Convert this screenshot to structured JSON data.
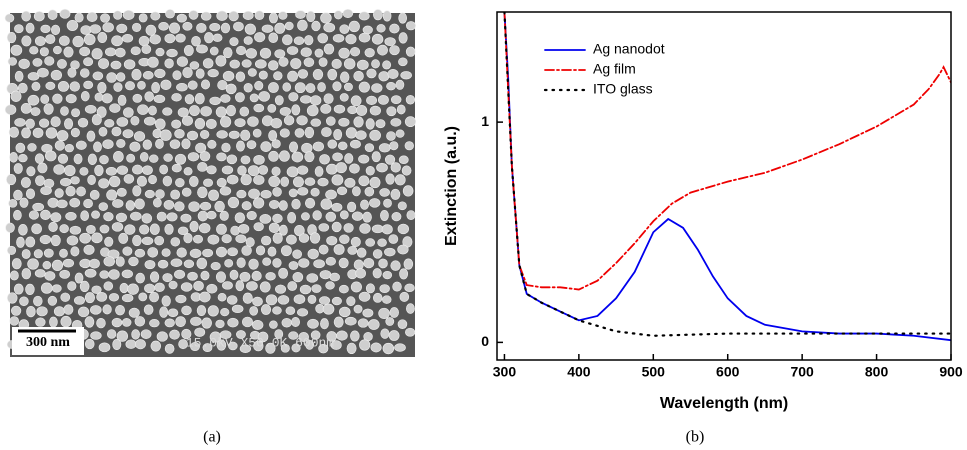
{
  "panel_a": {
    "scale_bar": "300 nm",
    "info": "15.0kV X50.0K 600nm",
    "caption": "(a)"
  },
  "caption_b": "(b)",
  "chart_data": {
    "type": "line",
    "xlabel": "Wavelength (nm)",
    "ylabel": "Extinction (a.u.)",
    "xlim": [
      290,
      900
    ],
    "ylim": [
      -0.08,
      1.5
    ],
    "xticks": [
      300,
      400,
      500,
      600,
      700,
      800,
      900
    ],
    "yticks": [
      0,
      1
    ],
    "legend": "upper left",
    "series": [
      {
        "name": "Ag nanodot",
        "color": "#0000ee",
        "style": "solid",
        "x": [
          300,
          305,
          310,
          320,
          330,
          350,
          375,
          400,
          425,
          450,
          475,
          500,
          520,
          540,
          560,
          580,
          600,
          625,
          650,
          700,
          750,
          800,
          850,
          900
        ],
        "values": [
          1.5,
          1.2,
          0.8,
          0.35,
          0.22,
          0.18,
          0.14,
          0.1,
          0.12,
          0.2,
          0.32,
          0.5,
          0.56,
          0.52,
          0.42,
          0.3,
          0.2,
          0.12,
          0.08,
          0.05,
          0.04,
          0.04,
          0.03,
          0.01
        ]
      },
      {
        "name": "Ag film",
        "color": "#ee0000",
        "style": "dashdot",
        "x": [
          300,
          310,
          320,
          330,
          350,
          375,
          400,
          425,
          450,
          475,
          500,
          525,
          550,
          600,
          650,
          700,
          750,
          800,
          850,
          870,
          885,
          890,
          900
        ],
        "values": [
          1.5,
          0.8,
          0.35,
          0.26,
          0.25,
          0.25,
          0.24,
          0.28,
          0.36,
          0.45,
          0.55,
          0.63,
          0.68,
          0.73,
          0.77,
          0.83,
          0.9,
          0.98,
          1.08,
          1.15,
          1.22,
          1.25,
          1.18
        ]
      },
      {
        "name": "ITO glass",
        "color": "#000000",
        "style": "dotted",
        "x": [
          300,
          310,
          320,
          330,
          350,
          400,
          450,
          500,
          600,
          700,
          800,
          900
        ],
        "values": [
          1.5,
          0.8,
          0.35,
          0.22,
          0.18,
          0.1,
          0.05,
          0.03,
          0.04,
          0.04,
          0.04,
          0.04
        ]
      }
    ]
  }
}
